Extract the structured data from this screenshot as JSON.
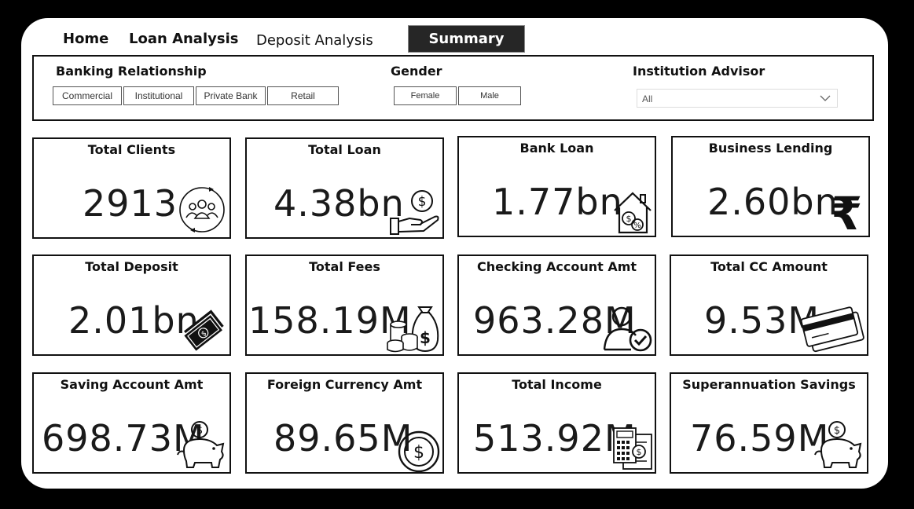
{
  "nav": {
    "home": "Home",
    "loan_analysis": "Loan Analysis",
    "deposit_analysis": "Deposit Analysis",
    "summary": "Summary"
  },
  "filters": {
    "banking_relationship": {
      "title": "Banking Relationship",
      "options": [
        "Commercial",
        "Institutional",
        "Private Bank",
        "Retail"
      ]
    },
    "gender": {
      "title": "Gender",
      "options": [
        "Female",
        "Male"
      ]
    },
    "institution_advisor": {
      "title": "Institution Advisor",
      "selected": "All",
      "icon": "chevron-down-icon"
    }
  },
  "cards": [
    {
      "title": "Total Clients",
      "value": "2913",
      "icon": "clients-cycle-icon"
    },
    {
      "title": "Total Loan",
      "value": "4.38bn",
      "icon": "hand-coin-icon"
    },
    {
      "title": "Bank Loan",
      "value": "1.77bn",
      "icon": "house-percent-icon"
    },
    {
      "title": "Business Lending",
      "value": "2.60bn",
      "icon": "rupee-icon"
    },
    {
      "title": "Total Deposit",
      "value": "2.01bn",
      "icon": "cash-stack-icon"
    },
    {
      "title": "Total Fees",
      "value": "158.19M",
      "icon": "money-bag-coins-icon"
    },
    {
      "title": "Checking Account Amt",
      "value": "963.28M",
      "icon": "user-check-icon"
    },
    {
      "title": "Total CC Amount",
      "value": "9.53M",
      "icon": "credit-card-icon"
    },
    {
      "title": "Saving Account Amt",
      "value": "698.73M",
      "icon": "piggy-bank-icon"
    },
    {
      "title": "Foreign Currency Amt",
      "value": "89.65M",
      "icon": "dollar-coin-icon"
    },
    {
      "title": "Total Income",
      "value": "513.92M",
      "icon": "calculator-icon"
    },
    {
      "title": "Superannuation Savings",
      "value": "76.59M",
      "icon": "piggy-bank-icon"
    }
  ],
  "colors": {
    "background": "#000000",
    "canvas": "#ffffff",
    "active_tab": "#262626",
    "border": "#111111"
  }
}
